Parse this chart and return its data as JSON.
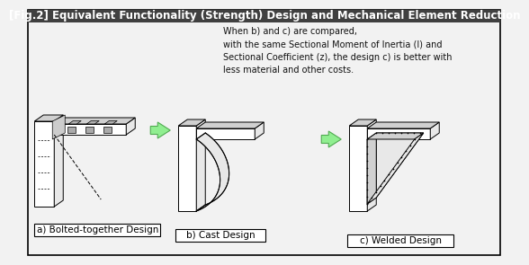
{
  "title": "[Fig.2] Equivalent Functionality (Strength) Design and Mechanical Element Reduction",
  "title_bg": "#404040",
  "title_color": "#ffffff",
  "bg_color": "#f2f2f2",
  "border_color": "#000000",
  "annotation_text": "When b) and c) are compared,\nwith the same Sectional Moment of Inertia (I) and\nSectional Coefficient (z), the design c) is better with\nless material and other costs.",
  "label_a": "a) Bolted-together Design",
  "label_b": "b) Cast Design",
  "label_c": "c) Welded Design",
  "arrow_color": "#90ee90",
  "arrow_edge": "#50aa50",
  "line_color": "#000000",
  "face_white": "#ffffff",
  "face_light": "#e8e8e8",
  "face_mid": "#d0d0d0",
  "font_size_title": 8.5,
  "font_size_label": 7.5,
  "font_size_note": 7.0
}
